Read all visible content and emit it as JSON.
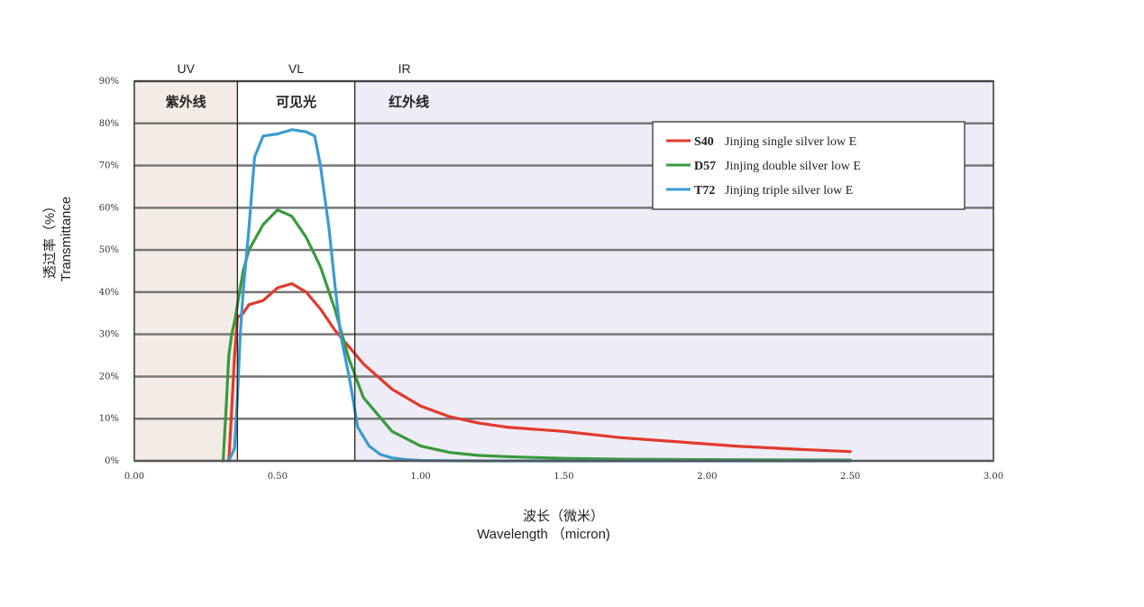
{
  "chart_data": {
    "type": "line",
    "title": "",
    "xlabel_cn": "波长（微米）",
    "xlabel": "Wavelength （micron)",
    "ylabel_cn": "透过率（%）",
    "ylabel": "Transmittance",
    "xlim": [
      0,
      3
    ],
    "ylim": [
      0,
      90
    ],
    "x_ticks": [
      "0.00",
      "0.50",
      "1.00",
      "1.50",
      "2.00",
      "2.50",
      "3.00"
    ],
    "y_ticks": [
      "0%",
      "10%",
      "20%",
      "30%",
      "40%",
      "50%",
      "60%",
      "70%",
      "80%",
      "90%"
    ],
    "grid": true,
    "legend_position": "top-right",
    "regions": [
      {
        "label": "UV",
        "label_cn": "紫外线",
        "x_from": 0.0,
        "x_to": 0.36,
        "color": "#f3ece6"
      },
      {
        "label": "VL",
        "label_cn": "可见光",
        "x_from": 0.36,
        "x_to": 0.77,
        "color": "#ffffff"
      },
      {
        "label": "IR",
        "label_cn": "红外线",
        "x_from": 0.77,
        "x_to": 3.0,
        "color": "#eeecf6"
      }
    ],
    "series": [
      {
        "name": "S40",
        "description": "Jinjing single silver low E",
        "color": "#e23a2e",
        "x": [
          0.33,
          0.34,
          0.35,
          0.36,
          0.38,
          0.4,
          0.45,
          0.5,
          0.55,
          0.6,
          0.65,
          0.7,
          0.75,
          0.8,
          0.9,
          1.0,
          1.1,
          1.2,
          1.3,
          1.5,
          1.7,
          1.9,
          2.1,
          2.3,
          2.5
        ],
        "y": [
          0,
          12,
          25,
          34,
          35,
          37,
          38,
          41,
          42,
          40,
          36,
          31,
          27,
          23,
          17,
          13,
          10.5,
          9,
          8,
          7,
          5.5,
          4.5,
          3.5,
          2.8,
          2.2
        ]
      },
      {
        "name": "D57",
        "description": "Jinjing double silver low E",
        "color": "#3a9a3c",
        "x": [
          0.31,
          0.32,
          0.33,
          0.34,
          0.35,
          0.36,
          0.38,
          0.4,
          0.45,
          0.5,
          0.55,
          0.6,
          0.65,
          0.7,
          0.75,
          0.8,
          0.9,
          1.0,
          1.1,
          1.2,
          1.3,
          1.5,
          1.7,
          2.0,
          2.5
        ],
        "y": [
          0,
          12,
          25,
          30,
          33,
          37,
          45,
          50,
          56,
          59.5,
          58,
          53,
          46,
          36,
          24,
          15,
          7,
          3.5,
          2,
          1.3,
          1,
          0.6,
          0.4,
          0.3,
          0.2
        ]
      },
      {
        "name": "T72",
        "description": "Jinjing triple silver low E",
        "color": "#3b9bd1",
        "x": [
          0.33,
          0.35,
          0.36,
          0.37,
          0.38,
          0.4,
          0.42,
          0.45,
          0.5,
          0.55,
          0.6,
          0.63,
          0.65,
          0.68,
          0.7,
          0.72,
          0.75,
          0.78,
          0.82,
          0.86,
          0.9,
          0.95,
          1.0,
          1.1,
          1.2,
          1.5,
          2.0,
          2.5
        ],
        "y": [
          0,
          3,
          15,
          30,
          40,
          55,
          72,
          77,
          77.5,
          78.5,
          78,
          77,
          70,
          55,
          42,
          30,
          20,
          8,
          3.5,
          1.5,
          0.7,
          0.3,
          0.1,
          0.05,
          0,
          0,
          0,
          0
        ]
      }
    ]
  }
}
